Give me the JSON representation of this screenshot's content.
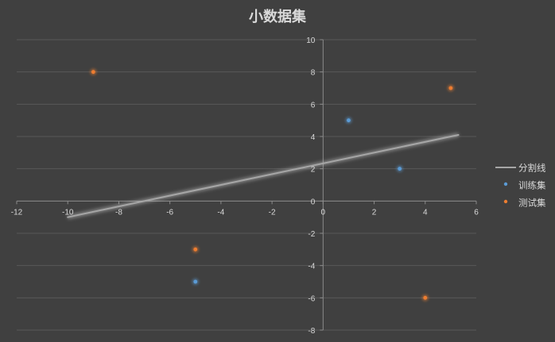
{
  "chart_data": {
    "type": "scatter",
    "title": "小数据集",
    "xlabel": "",
    "ylabel": "",
    "xlim": [
      -12,
      6
    ],
    "ylim": [
      -8,
      10
    ],
    "x_ticks": [
      -12,
      -10,
      -8,
      -6,
      -4,
      -2,
      0,
      2,
      4,
      6
    ],
    "y_ticks": [
      -8,
      -6,
      -4,
      -2,
      0,
      2,
      4,
      6,
      8,
      10
    ],
    "grid": "horizontal",
    "legend_position": "right",
    "series": [
      {
        "name": "分割线",
        "kind": "line",
        "color": "#a6a6a6",
        "points": [
          [
            -10,
            -1
          ],
          [
            5.3,
            4.1
          ]
        ]
      },
      {
        "name": "训练集",
        "kind": "scatter",
        "color": "#5b9bd5",
        "points": [
          [
            1,
            5
          ],
          [
            3,
            2
          ],
          [
            -5,
            -5
          ]
        ]
      },
      {
        "name": "测试集",
        "kind": "scatter",
        "color": "#ed7d31",
        "points": [
          [
            -9,
            8
          ],
          [
            5,
            7
          ],
          [
            -5,
            -3
          ],
          [
            4,
            -6
          ]
        ]
      }
    ]
  }
}
